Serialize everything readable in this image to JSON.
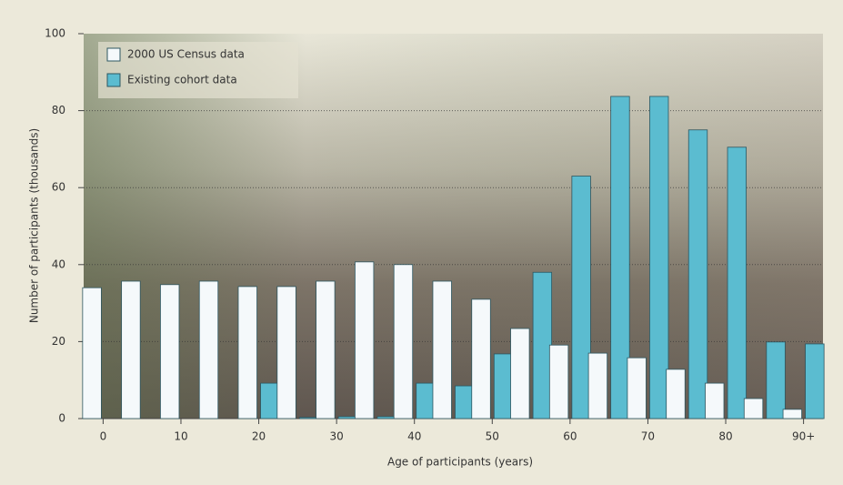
{
  "chart_data": {
    "type": "bar",
    "x_label": "Age of participants (years)",
    "y_label": "Number of participants (thousands)",
    "categories": [
      "0",
      null,
      "10",
      null,
      "20",
      null,
      "30",
      null,
      "40",
      null,
      "50",
      null,
      "60",
      null,
      "70",
      null,
      "80",
      null,
      "90+"
    ],
    "series": [
      {
        "name": "2000 US Census data",
        "color": "#f5f9fb",
        "values": [
          34,
          35.7,
          34.8,
          35.7,
          34.3,
          34.3,
          35.7,
          40.7,
          40,
          35.7,
          31,
          23.4,
          19.1,
          17,
          15.8,
          12.8,
          9.2,
          5.2,
          2.4
        ]
      },
      {
        "name": "Existing cohort data",
        "color": "#5bbcd0",
        "values": [
          0,
          0,
          0,
          0,
          9.2,
          0.3,
          0.5,
          0.5,
          9.2,
          8.5,
          16.8,
          38,
          63,
          83.7,
          83.7,
          75,
          70.5,
          19.9,
          19.4
        ]
      }
    ],
    "ylim": [
      0,
      100
    ],
    "yticks": [
      0,
      20,
      40,
      60,
      80,
      100
    ],
    "grid": true,
    "legend": "top-left"
  }
}
